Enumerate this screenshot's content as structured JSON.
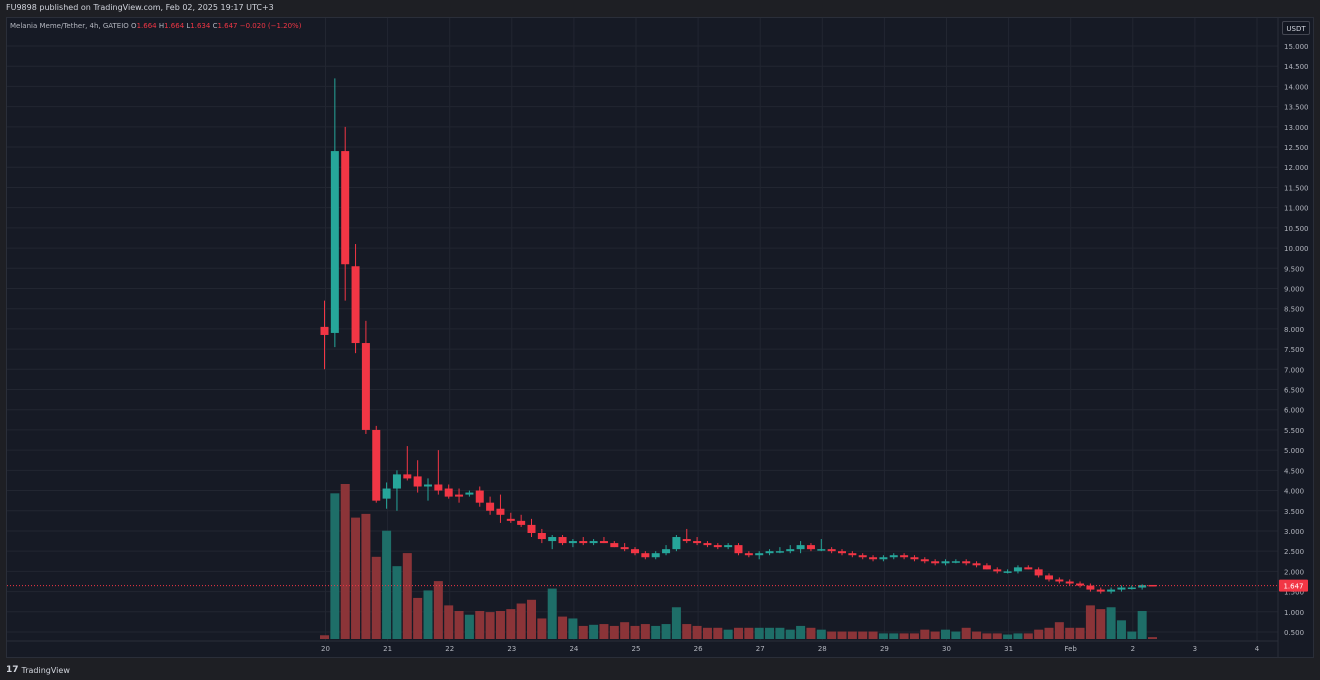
{
  "header": {
    "published": "FU9898 published on TradingView.com, Feb 02, 2025 19:17 UTC+3"
  },
  "legend": {
    "symbol": "Melania Meme/Tether, 4h, GATEIO",
    "o_label": "O",
    "o": "1.664",
    "h_label": "H",
    "h": "1.664",
    "l_label": "L",
    "l": "1.634",
    "c_label": "C",
    "c": "1.647",
    "change": "−0.020 (−1.20%)"
  },
  "currency_button": "USDT",
  "branding": {
    "logo_mark": "17",
    "name": "TradingView"
  },
  "colors": {
    "up": "#26a69a",
    "down": "#f23645",
    "vol_up": "#1e6e68",
    "vol_down": "#8b3438",
    "grid": "#222631",
    "background": "#161a25"
  },
  "chart_data": {
    "type": "candlestick",
    "title": "Melania Meme/Tether, 4h, GATEIO",
    "interval": "4h",
    "ylim": [
      0.25,
      15.25
    ],
    "y_ticks": [
      "15.000",
      "14.500",
      "14.000",
      "13.500",
      "13.000",
      "12.500",
      "12.000",
      "11.500",
      "11.000",
      "10.500",
      "10.000",
      "9.500",
      "9.000",
      "8.500",
      "8.000",
      "7.500",
      "7.000",
      "6.500",
      "6.000",
      "5.500",
      "5.000",
      "4.500",
      "4.000",
      "3.500",
      "3.000",
      "2.500",
      "2.000",
      "1.500",
      "1.000",
      "0.500"
    ],
    "x_labels": [
      "20",
      "21",
      "22",
      "23",
      "24",
      "25",
      "26",
      "27",
      "28",
      "29",
      "30",
      "31",
      "Feb",
      "2",
      "3",
      "4"
    ],
    "x_label_positions": [
      0,
      6,
      12,
      18,
      24,
      30,
      36,
      42,
      48,
      54,
      60,
      66,
      72,
      78,
      84,
      90
    ],
    "last_price": "1.647",
    "candles": [
      [
        8.05,
        8.7,
        7.0,
        7.85,
        0.1
      ],
      [
        7.9,
        14.2,
        7.55,
        12.4,
        3.9
      ],
      [
        12.4,
        13.0,
        8.7,
        9.6,
        4.15
      ],
      [
        9.55,
        10.1,
        7.4,
        7.65,
        3.25
      ],
      [
        7.65,
        8.2,
        5.4,
        5.5,
        3.35
      ],
      [
        5.5,
        5.6,
        3.7,
        3.75,
        2.2
      ],
      [
        3.8,
        4.2,
        3.55,
        4.05,
        2.9
      ],
      [
        4.05,
        4.5,
        3.5,
        4.4,
        1.95
      ],
      [
        4.4,
        5.1,
        4.25,
        4.3,
        2.3
      ],
      [
        4.35,
        4.75,
        3.95,
        4.1,
        1.1
      ],
      [
        4.1,
        4.3,
        3.75,
        4.15,
        1.3
      ],
      [
        4.15,
        5.0,
        3.9,
        4.0,
        1.55
      ],
      [
        4.05,
        4.15,
        3.8,
        3.85,
        0.9
      ],
      [
        3.9,
        4.05,
        3.7,
        3.85,
        0.75
      ],
      [
        3.9,
        4.0,
        3.85,
        3.95,
        0.65
      ],
      [
        4.0,
        4.1,
        3.6,
        3.7,
        0.75
      ],
      [
        3.7,
        3.85,
        3.4,
        3.5,
        0.72
      ],
      [
        3.55,
        3.9,
        3.2,
        3.4,
        0.75
      ],
      [
        3.3,
        3.45,
        3.2,
        3.25,
        0.8
      ],
      [
        3.25,
        3.4,
        3.1,
        3.15,
        0.95
      ],
      [
        3.15,
        3.3,
        2.85,
        2.95,
        1.05
      ],
      [
        2.95,
        3.05,
        2.7,
        2.8,
        0.55
      ],
      [
        2.75,
        2.9,
        2.55,
        2.85,
        1.35
      ],
      [
        2.85,
        2.9,
        2.65,
        2.7,
        0.6
      ],
      [
        2.7,
        2.8,
        2.6,
        2.75,
        0.55
      ],
      [
        2.75,
        2.85,
        2.65,
        2.7,
        0.35
      ],
      [
        2.7,
        2.8,
        2.65,
        2.75,
        0.38
      ],
      [
        2.75,
        2.85,
        2.7,
        2.7,
        0.4
      ],
      [
        2.7,
        2.75,
        2.6,
        2.6,
        0.35
      ],
      [
        2.6,
        2.7,
        2.5,
        2.55,
        0.45
      ],
      [
        2.55,
        2.6,
        2.4,
        2.45,
        0.35
      ],
      [
        2.45,
        2.5,
        2.3,
        2.35,
        0.4
      ],
      [
        2.35,
        2.5,
        2.3,
        2.45,
        0.35
      ],
      [
        2.45,
        2.65,
        2.4,
        2.55,
        0.4
      ],
      [
        2.55,
        2.9,
        2.5,
        2.85,
        0.85
      ],
      [
        2.8,
        3.05,
        2.7,
        2.75,
        0.4
      ],
      [
        2.75,
        2.85,
        2.65,
        2.7,
        0.35
      ],
      [
        2.7,
        2.75,
        2.6,
        2.65,
        0.3
      ],
      [
        2.65,
        2.7,
        2.55,
        2.6,
        0.3
      ],
      [
        2.6,
        2.7,
        2.55,
        2.65,
        0.25
      ],
      [
        2.65,
        2.7,
        2.4,
        2.45,
        0.3
      ],
      [
        2.45,
        2.5,
        2.35,
        2.4,
        0.3
      ],
      [
        2.4,
        2.5,
        2.3,
        2.45,
        0.3
      ],
      [
        2.45,
        2.55,
        2.4,
        2.5,
        0.3
      ],
      [
        2.5,
        2.6,
        2.45,
        2.5,
        0.3
      ],
      [
        2.5,
        2.65,
        2.45,
        2.55,
        0.25
      ],
      [
        2.55,
        2.75,
        2.45,
        2.65,
        0.35
      ],
      [
        2.65,
        2.7,
        2.5,
        2.55,
        0.3
      ],
      [
        2.55,
        2.8,
        2.5,
        2.55,
        0.25
      ],
      [
        2.55,
        2.6,
        2.45,
        2.5,
        0.2
      ],
      [
        2.5,
        2.55,
        2.4,
        2.45,
        0.2
      ],
      [
        2.45,
        2.5,
        2.35,
        2.4,
        0.2
      ],
      [
        2.4,
        2.45,
        2.3,
        2.35,
        0.2
      ],
      [
        2.35,
        2.4,
        2.25,
        2.3,
        0.2
      ],
      [
        2.3,
        2.4,
        2.25,
        2.35,
        0.15
      ],
      [
        2.35,
        2.45,
        2.3,
        2.4,
        0.15
      ],
      [
        2.4,
        2.45,
        2.3,
        2.35,
        0.15
      ],
      [
        2.35,
        2.4,
        2.25,
        2.3,
        0.15
      ],
      [
        2.3,
        2.35,
        2.2,
        2.25,
        0.25
      ],
      [
        2.25,
        2.3,
        2.15,
        2.2,
        0.2
      ],
      [
        2.2,
        2.3,
        2.15,
        2.25,
        0.25
      ],
      [
        2.25,
        2.3,
        2.2,
        2.25,
        0.2
      ],
      [
        2.25,
        2.3,
        2.15,
        2.2,
        0.3
      ],
      [
        2.2,
        2.25,
        2.1,
        2.15,
        0.2
      ],
      [
        2.15,
        2.2,
        2.05,
        2.05,
        0.15
      ],
      [
        2.05,
        2.1,
        1.95,
        2.0,
        0.15
      ],
      [
        2.0,
        2.05,
        1.95,
        2.0,
        0.12
      ],
      [
        2.0,
        2.15,
        1.95,
        2.1,
        0.15
      ],
      [
        2.1,
        2.15,
        2.05,
        2.05,
        0.15
      ],
      [
        2.05,
        2.1,
        1.85,
        1.9,
        0.25
      ],
      [
        1.9,
        1.95,
        1.75,
        1.8,
        0.3
      ],
      [
        1.8,
        1.85,
        1.7,
        1.75,
        0.45
      ],
      [
        1.75,
        1.8,
        1.65,
        1.7,
        0.3
      ],
      [
        1.7,
        1.75,
        1.6,
        1.65,
        0.3
      ],
      [
        1.65,
        1.7,
        1.5,
        1.55,
        0.9
      ],
      [
        1.55,
        1.6,
        1.45,
        1.5,
        0.8
      ],
      [
        1.5,
        1.6,
        1.45,
        1.55,
        0.85
      ],
      [
        1.55,
        1.65,
        1.5,
        1.6,
        0.5
      ],
      [
        1.6,
        1.65,
        1.55,
        1.6,
        0.2
      ],
      [
        1.6,
        1.68,
        1.55,
        1.66,
        0.75
      ],
      [
        1.664,
        1.664,
        1.634,
        1.647,
        0.05
      ]
    ]
  }
}
